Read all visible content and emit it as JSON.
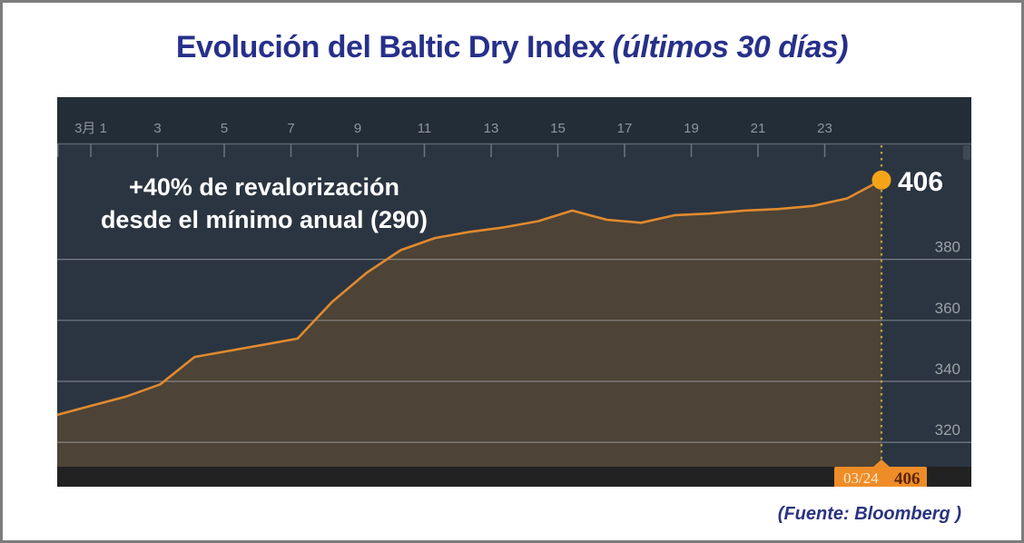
{
  "header": {
    "title_main": "Evolución del Baltic Dry Index",
    "title_note": "(últimos 30 días)"
  },
  "footer": {
    "source": "(Fuente: Bloomberg )"
  },
  "chart_data": {
    "type": "area",
    "title": "Evolución del Baltic Dry Index (últimos 30 días)",
    "x": [
      "02/29",
      "03/01",
      "03/02",
      "03/03",
      "03/04",
      "03/05",
      "03/06",
      "03/07",
      "03/08",
      "03/09",
      "03/10",
      "03/11",
      "03/12",
      "03/13",
      "03/14",
      "03/15",
      "03/16",
      "03/17",
      "03/18",
      "03/19",
      "03/20",
      "03/21",
      "03/22",
      "03/23",
      "03/24"
    ],
    "series": [
      {
        "name": "Baltic Dry Index",
        "values": [
          329,
          332,
          335,
          339,
          348,
          350,
          352,
          354,
          366,
          375.5,
          383,
          387,
          389,
          390.5,
          392.5,
          396,
          393,
          392,
          394.5,
          395,
          396,
          396.5,
          397.5,
          400,
          406
        ]
      }
    ],
    "x_tick_labels": [
      "3月 1",
      "3",
      "5",
      "7",
      "9",
      "11",
      "13",
      "15",
      "17",
      "19",
      "21",
      "23"
    ],
    "y_ticks": [
      320,
      340,
      360,
      380
    ],
    "ylim": [
      312,
      418
    ],
    "grid": true,
    "legend": null,
    "annotation": {
      "line1": "+40% de revalorización",
      "line2": "desde el mínimo anual (290)"
    },
    "endpoint": {
      "value_label": "406",
      "badge_date": "03/24",
      "badge_value": "406"
    },
    "colors": {
      "plot_bg": "#2b3541",
      "header_bg": "#232d37",
      "bottom_bar": "#212121",
      "area_fill": "#4d4336",
      "line": "#e08a2e",
      "dot": "#f4a418",
      "grid_line": "#c3c8cd",
      "axis_line": "#5a636b",
      "tick": "#6b747d",
      "x_label": "#8d959e",
      "y_label": "#99a1a8",
      "dashed_line": "#bfa045",
      "badge_bg": "#ee8d27",
      "badge_date_text": "#f6ecd0",
      "badge_value_text": "#5c2408",
      "annotation_text": "#ffffff",
      "endpoint_text": "#ffffff",
      "scroll_thumb": "#3e4954"
    }
  }
}
